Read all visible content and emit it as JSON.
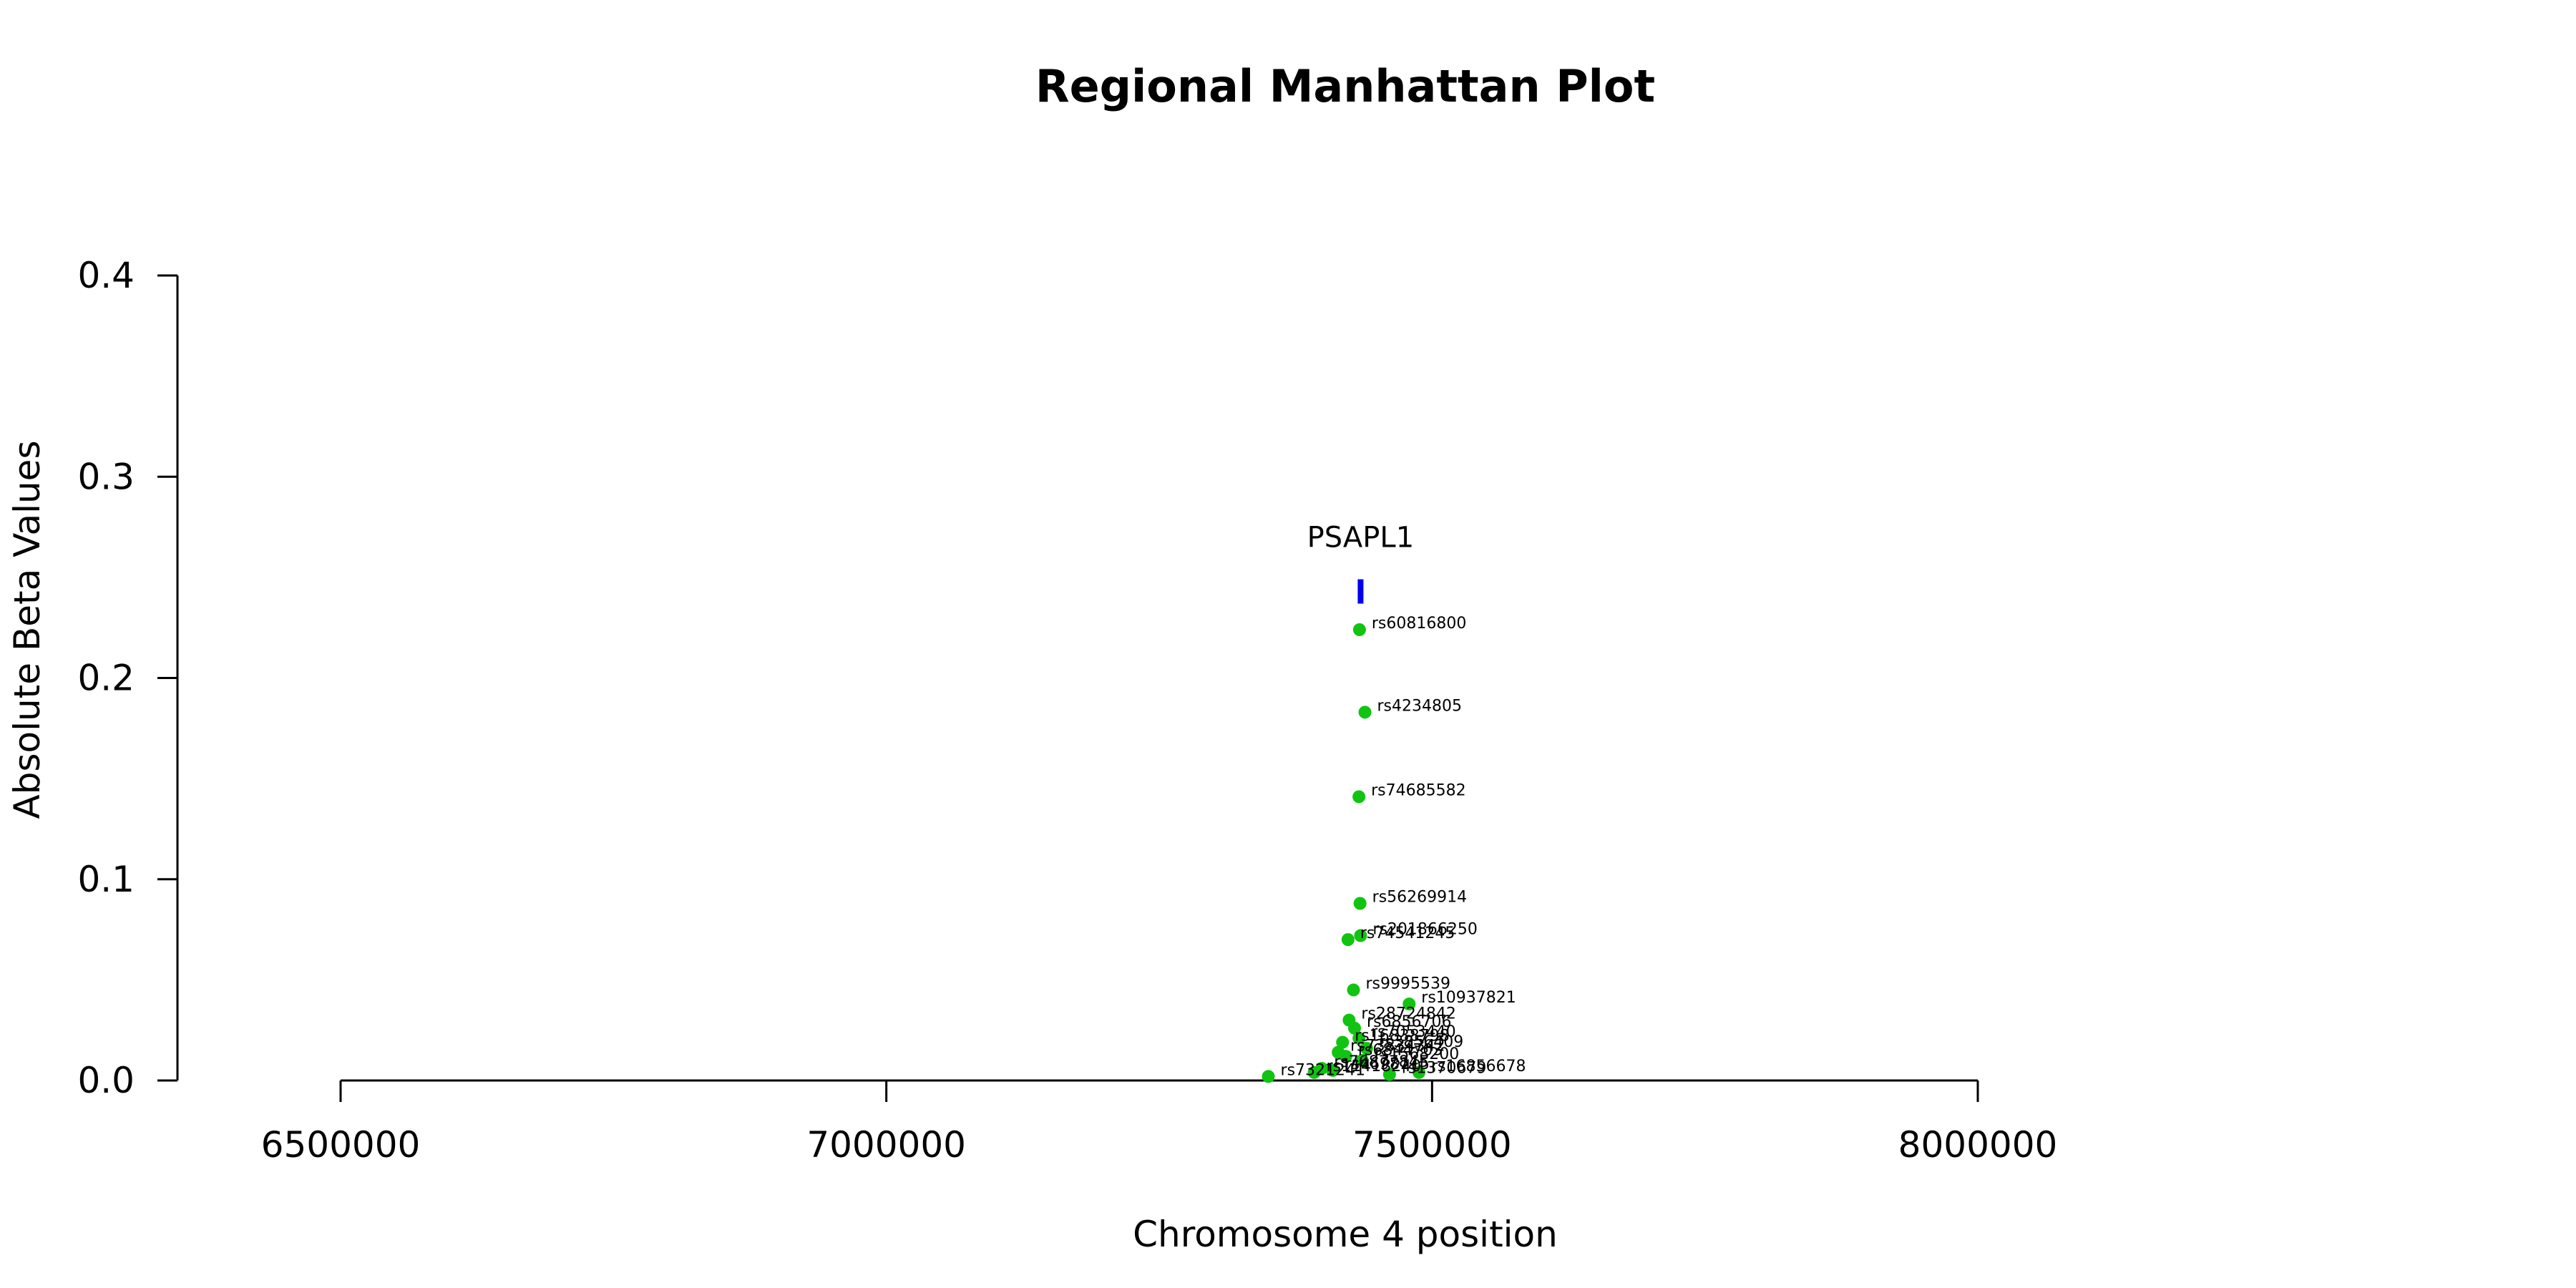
{
  "chart_data": {
    "type": "scatter",
    "title": "Regional Manhattan Plot",
    "xlabel": "Chromosome 4 position",
    "ylabel": "Absolute Beta Values",
    "xlim": [
      6350000,
      8400000
    ],
    "ylim": [
      0,
      0.4
    ],
    "x_ticks": [
      6500000,
      7000000,
      7500000,
      8000000
    ],
    "x_tick_labels": [
      "6500000",
      "7000000",
      "7500000",
      "8000000"
    ],
    "y_ticks": [
      0.0,
      0.1,
      0.2,
      0.3,
      0.4
    ],
    "y_tick_labels": [
      "0.0",
      "0.1",
      "0.2",
      "0.3",
      "0.4"
    ],
    "point_color": "#11c411",
    "gene_color": "#0000ee",
    "gene": {
      "name": "PSAPL1",
      "start": 7433000,
      "end": 7436000,
      "y": 0.243
    },
    "points": [
      {
        "x": 7433500,
        "y": 0.224,
        "label": "rs60816800"
      },
      {
        "x": 7438500,
        "y": 0.183,
        "label": "rs4234805"
      },
      {
        "x": 7433000,
        "y": 0.141,
        "label": "rs74685582"
      },
      {
        "x": 7434000,
        "y": 0.088,
        "label": "rs56269914"
      },
      {
        "x": 7434500,
        "y": 0.072,
        "label": "rs201866250"
      },
      {
        "x": 7423000,
        "y": 0.07,
        "label": "rs74541245"
      },
      {
        "x": 7428000,
        "y": 0.045,
        "label": "rs9995539"
      },
      {
        "x": 7479000,
        "y": 0.038,
        "label": "rs10937821"
      },
      {
        "x": 7424000,
        "y": 0.03,
        "label": "rs28724842"
      },
      {
        "x": 7429000,
        "y": 0.026,
        "label": "rs6856706"
      },
      {
        "x": 7433000,
        "y": 0.021,
        "label": "rs7053440"
      },
      {
        "x": 7418000,
        "y": 0.019,
        "label": "rs16838798"
      },
      {
        "x": 7440000,
        "y": 0.016,
        "label": "rs3856409"
      },
      {
        "x": 7414000,
        "y": 0.014,
        "label": "rs73834342"
      },
      {
        "x": 7421000,
        "y": 0.012,
        "label": "rs6844703"
      },
      {
        "x": 7436000,
        "y": 0.01,
        "label": "rs1568200"
      },
      {
        "x": 7399000,
        "y": 0.006,
        "label": "rs76877845"
      },
      {
        "x": 7409000,
        "y": 0.005,
        "label": "rs4698115"
      },
      {
        "x": 7392000,
        "y": 0.004,
        "label": "rs11418240"
      },
      {
        "x": 7461000,
        "y": 0.003,
        "label": "rs1370679"
      },
      {
        "x": 7488000,
        "y": 0.004,
        "label": "rs16856678"
      },
      {
        "x": 7350000,
        "y": 0.002,
        "label": "rs7321241"
      }
    ]
  }
}
